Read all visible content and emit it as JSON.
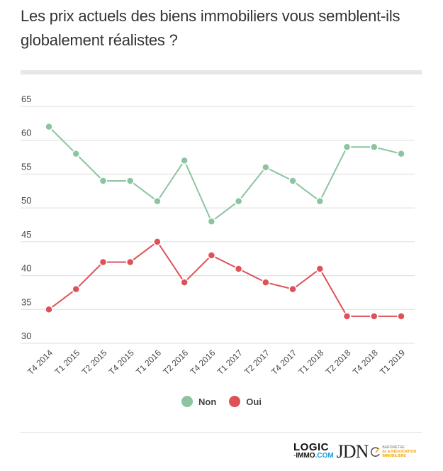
{
  "title": "Les prix actuels des biens immobiliers vous semblent-ils globalement réalistes ?",
  "chart_data": {
    "type": "line",
    "title": "Les prix actuels des biens immobiliers vous semblent-ils globalement réalistes ?",
    "xlabel": "",
    "ylabel": "",
    "categories": [
      "T4 2014",
      "T1 2015",
      "T2 2015",
      "T4 2015",
      "T1 2016",
      "T2 2016",
      "T4 2016",
      "T1 2017",
      "T2 2017",
      "T4 2017",
      "T1 2018",
      "T2 2018",
      "T4 2018",
      "T1 2019"
    ],
    "series": [
      {
        "name": "Non",
        "color": "#8cc4a0",
        "values": [
          62,
          58,
          54,
          54,
          51,
          57,
          48,
          51,
          56,
          54,
          51,
          59,
          59,
          58
        ]
      },
      {
        "name": "Oui",
        "color": "#de5158",
        "values": [
          35,
          38,
          42,
          42,
          45,
          39,
          43,
          41,
          39,
          38,
          41,
          34,
          34,
          34
        ]
      }
    ],
    "ylim": [
      30,
      65
    ],
    "yticks": [
      30,
      35,
      40,
      45,
      50,
      55,
      60,
      65
    ],
    "grid": true,
    "legend": "bottom-center"
  },
  "legend": {
    "items": [
      {
        "label": "Non",
        "color": "#8cc4a0"
      },
      {
        "label": "Oui",
        "color": "#de5158"
      }
    ]
  },
  "logos": {
    "logic_line1": "LOGIC",
    "logic_dash": "-",
    "logic_immo": "IMMO",
    "logic_com": ".COM",
    "jdn": "JDN",
    "baro_line1": "BAROMÈTRE",
    "baro_line2": "de la NÉGOCIATION",
    "baro_line3": "IMMOBILIÈRE"
  }
}
